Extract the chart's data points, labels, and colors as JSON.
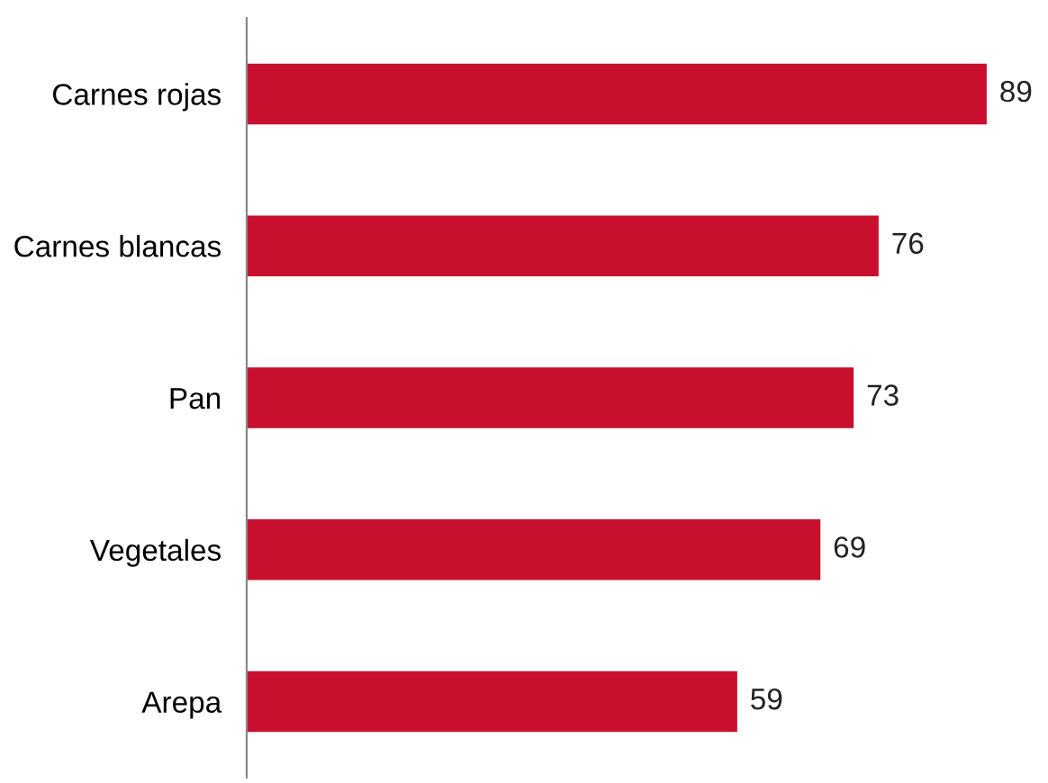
{
  "chart_data": {
    "type": "bar",
    "orientation": "horizontal",
    "categories": [
      "Carnes rojas",
      "Carnes blancas",
      "Pan",
      "Vegetales",
      "Arepa"
    ],
    "values": [
      89,
      76,
      73,
      69,
      59
    ],
    "color": "#c8102e",
    "data_labels": true,
    "tick_labels": "y",
    "grid": false,
    "legend": false
  }
}
